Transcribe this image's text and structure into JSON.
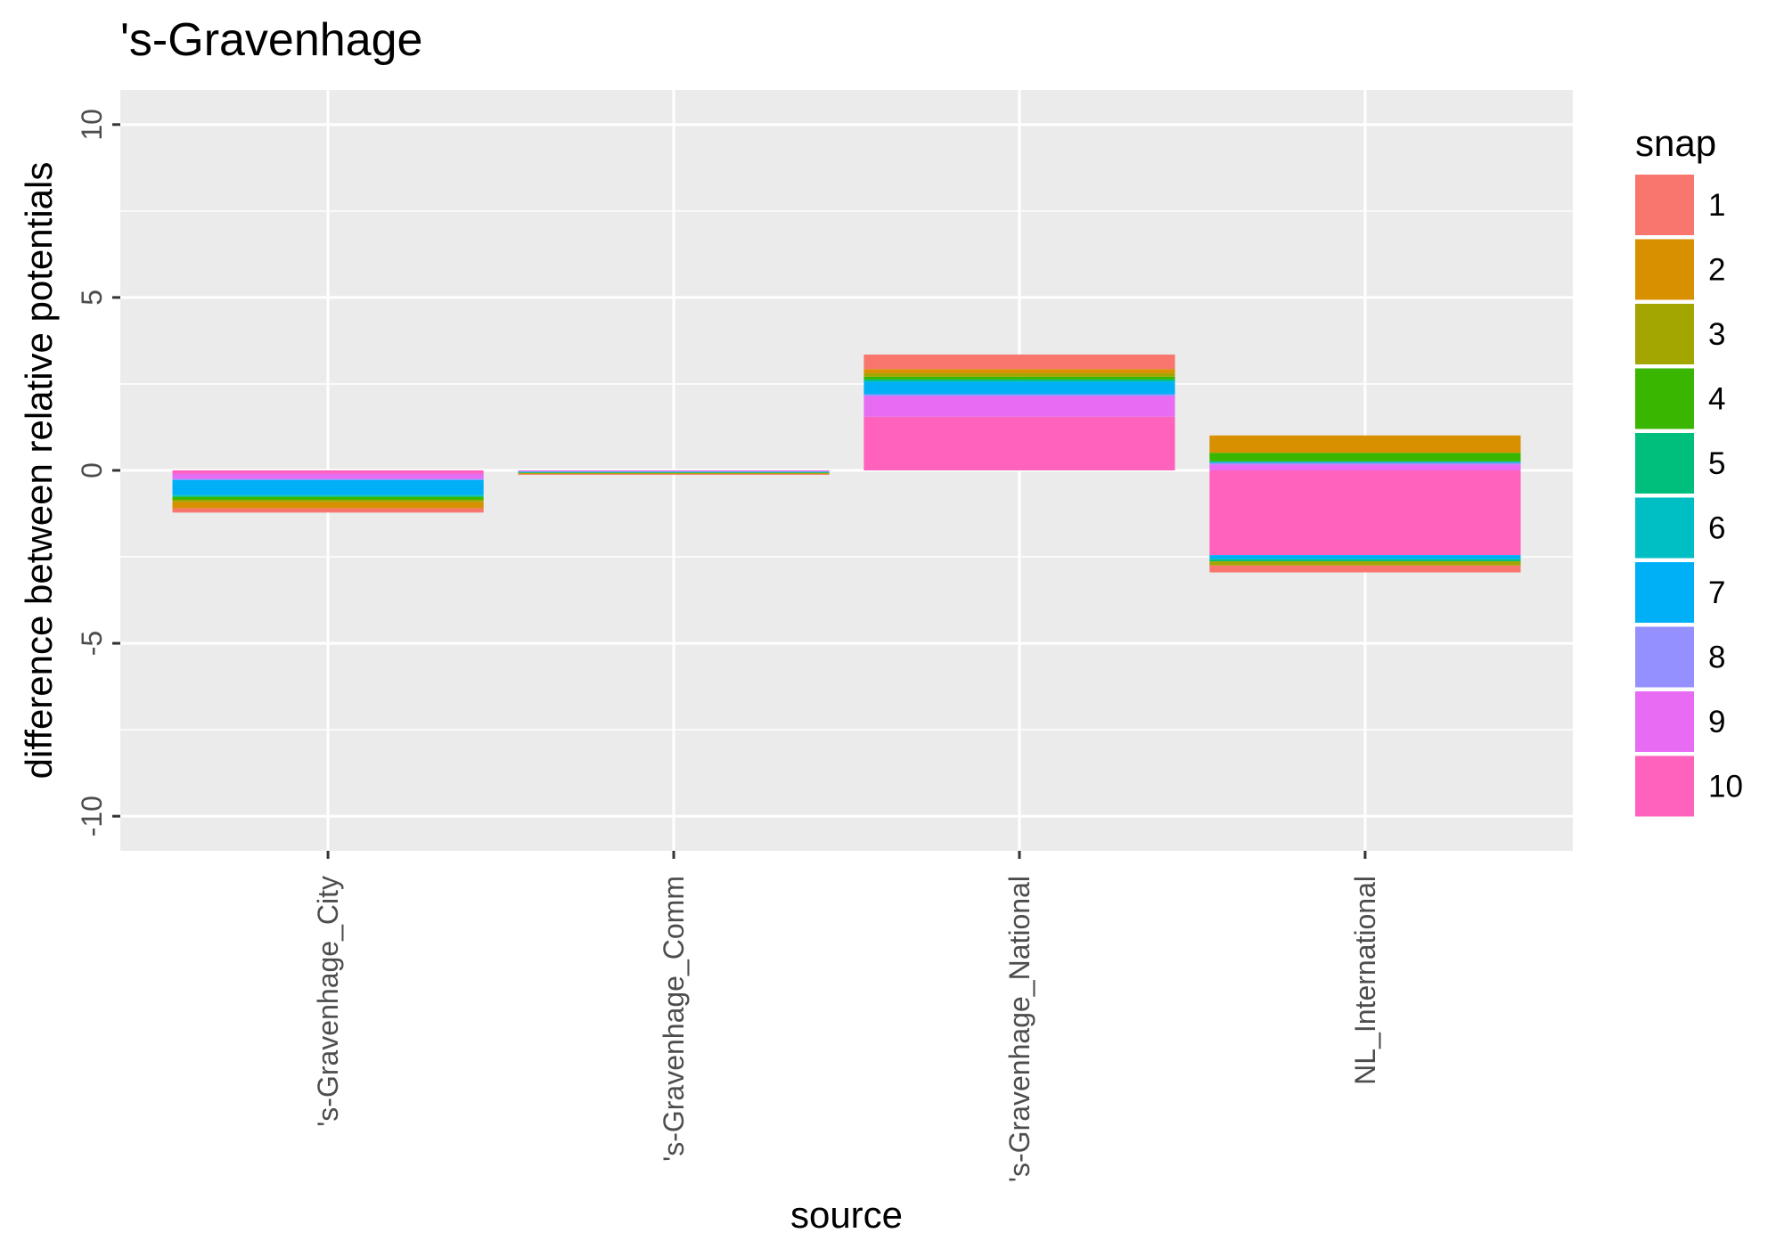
{
  "chart_data": {
    "type": "bar",
    "stacked": true,
    "title": "'s-Gravenhage",
    "xlabel": "source",
    "ylabel": "difference between relative potentials",
    "ylim": [
      -11,
      11
    ],
    "yticks": [
      -10,
      -5,
      0,
      5,
      10
    ],
    "grid": true,
    "legend": {
      "title": "snap",
      "position": "right"
    },
    "categories": [
      "'s-Gravenhage_City",
      "'s-Gravenhage_Comm",
      "'s-Gravenhage_National",
      "NL_International"
    ],
    "series": [
      {
        "name": "1",
        "color": "#F8766D",
        "values": [
          -0.12,
          -0.02,
          0.42,
          -0.2
        ]
      },
      {
        "name": "2",
        "color": "#D89000",
        "values": [
          -0.18,
          -0.02,
          0.12,
          0.5
        ]
      },
      {
        "name": "3",
        "color": "#A3A500",
        "values": [
          -0.07,
          -0.01,
          0.1,
          -0.12
        ]
      },
      {
        "name": "4",
        "color": "#39B600",
        "values": [
          -0.08,
          -0.01,
          0.08,
          0.25
        ]
      },
      {
        "name": "5",
        "color": "#00BF7D",
        "values": [
          -0.03,
          -0.01,
          0.04,
          -0.06
        ]
      },
      {
        "name": "6",
        "color": "#00BFC4",
        "values": [
          -0.03,
          -0.01,
          0.04,
          0.04
        ]
      },
      {
        "name": "7",
        "color": "#00B0F6",
        "values": [
          -0.43,
          -0.01,
          0.35,
          -0.12
        ]
      },
      {
        "name": "8",
        "color": "#9590FF",
        "values": [
          -0.04,
          -0.01,
          0.05,
          0.05
        ]
      },
      {
        "name": "9",
        "color": "#E76BF3",
        "values": [
          -0.15,
          -0.02,
          0.6,
          0.17
        ]
      },
      {
        "name": "10",
        "color": "#FF62BC",
        "values": [
          -0.09,
          -0.01,
          1.55,
          -2.45
        ]
      }
    ]
  }
}
